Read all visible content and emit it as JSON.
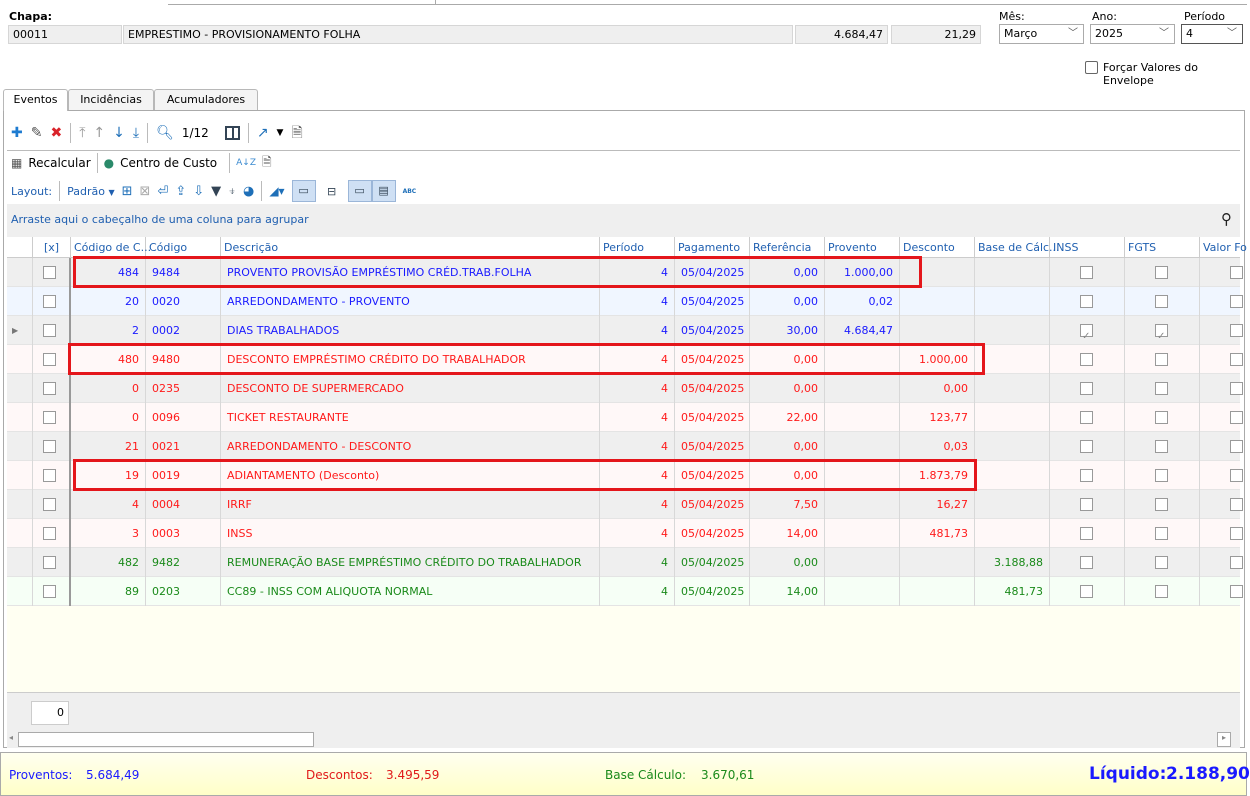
{
  "header": {
    "chapa_label": "Chapa:",
    "chapa": "00011",
    "nome": "EMPRESTIMO - PROVISIONAMENTO FOLHA",
    "valor1": "4.684,47",
    "valor2": "21,29",
    "mes_label": "Mês:",
    "mes": "Março",
    "ano_label": "Ano:",
    "ano": "2025",
    "periodo_label": "Período",
    "periodo": "4",
    "forcar_label": "Forçar Valores do Envelope"
  },
  "tabs": [
    {
      "label": "Eventos"
    },
    {
      "label": "Incidências"
    },
    {
      "label": "Acumuladores"
    }
  ],
  "toolbar": {
    "page": "1/12",
    "recalcular": "Recalcular",
    "centro_custo": "Centro de Custo",
    "layout_label": "Layout:",
    "layout_value": "Padrão",
    "abc": "ABC"
  },
  "group_hint": "Arraste aqui o cabeçalho de uma coluna para agrupar",
  "columns": [
    "[x]",
    "Código de C...",
    "Código",
    "Descrição",
    "Período",
    "Pagamento",
    "Referência",
    "Provento",
    "Desconto",
    "Base de Cálc...",
    "INSS",
    "FGTS",
    "Valor Fo"
  ],
  "colors": {
    "provento": "#1a1aff",
    "desconto": "#ff1a1a",
    "base": "#1a8a1a",
    "highlight": "#e4161b"
  },
  "rows": [
    {
      "cc": "484",
      "cod": "9484",
      "desc": "PROVENTO PROVISÃO EMPRÉSTIMO CRÉD.TRAB.FOLHA",
      "per": "4",
      "pag": "05/04/2025",
      "ref": "0,00",
      "prov": "1.000,00",
      "desc_v": "",
      "base": "",
      "inss": false,
      "fgts": false,
      "type": "provento",
      "highlight": true
    },
    {
      "cc": "20",
      "cod": "0020",
      "desc": "ARREDONDAMENTO - PROVENTO",
      "per": "4",
      "pag": "05/04/2025",
      "ref": "0,00",
      "prov": "0,02",
      "desc_v": "",
      "base": "",
      "inss": false,
      "fgts": false,
      "type": "provento"
    },
    {
      "cc": "2",
      "cod": "0002",
      "desc": "DIAS TRABALHADOS",
      "per": "4",
      "pag": "05/04/2025",
      "ref": "30,00",
      "prov": "4.684,47",
      "desc_v": "",
      "base": "",
      "inss": true,
      "fgts": true,
      "type": "provento",
      "current": true
    },
    {
      "cc": "480",
      "cod": "9480",
      "desc": "DESCONTO EMPRÉSTIMO CRÉDITO DO TRABALHADOR",
      "per": "4",
      "pag": "05/04/2025",
      "ref": "0,00",
      "prov": "",
      "desc_v": "1.000,00",
      "base": "",
      "inss": false,
      "fgts": false,
      "type": "desconto",
      "highlight": true
    },
    {
      "cc": "0",
      "cod": "0235",
      "desc": "DESCONTO DE SUPERMERCADO",
      "per": "4",
      "pag": "05/04/2025",
      "ref": "0,00",
      "prov": "",
      "desc_v": "0,00",
      "base": "",
      "inss": false,
      "fgts": false,
      "type": "desconto"
    },
    {
      "cc": "0",
      "cod": "0096",
      "desc": "TICKET RESTAURANTE",
      "per": "4",
      "pag": "05/04/2025",
      "ref": "22,00",
      "prov": "",
      "desc_v": "123,77",
      "base": "",
      "inss": false,
      "fgts": false,
      "type": "desconto"
    },
    {
      "cc": "21",
      "cod": "0021",
      "desc": "ARREDONDAMENTO - DESCONTO",
      "per": "4",
      "pag": "05/04/2025",
      "ref": "0,00",
      "prov": "",
      "desc_v": "0,03",
      "base": "",
      "inss": false,
      "fgts": false,
      "type": "desconto"
    },
    {
      "cc": "19",
      "cod": "0019",
      "desc": "ADIANTAMENTO (Desconto)",
      "per": "4",
      "pag": "05/04/2025",
      "ref": "0,00",
      "prov": "",
      "desc_v": "1.873,79",
      "base": "",
      "inss": false,
      "fgts": false,
      "type": "desconto",
      "highlight": true
    },
    {
      "cc": "4",
      "cod": "0004",
      "desc": "IRRF",
      "per": "4",
      "pag": "05/04/2025",
      "ref": "7,50",
      "prov": "",
      "desc_v": "16,27",
      "base": "",
      "inss": false,
      "fgts": false,
      "type": "desconto"
    },
    {
      "cc": "3",
      "cod": "0003",
      "desc": "INSS",
      "per": "4",
      "pag": "05/04/2025",
      "ref": "14,00",
      "prov": "",
      "desc_v": "481,73",
      "base": "",
      "inss": false,
      "fgts": false,
      "type": "desconto"
    },
    {
      "cc": "482",
      "cod": "9482",
      "desc": "REMUNERAÇÃO BASE EMPRÉSTIMO CRÉDITO DO TRABALHADOR",
      "per": "4",
      "pag": "05/04/2025",
      "ref": "0,00",
      "prov": "",
      "desc_v": "",
      "base": "3.188,88",
      "inss": false,
      "fgts": false,
      "type": "base"
    },
    {
      "cc": "89",
      "cod": "0203",
      "desc": "CC89 - INSS COM ALIQUOTA NORMAL",
      "per": "4",
      "pag": "05/04/2025",
      "ref": "14,00",
      "prov": "",
      "desc_v": "",
      "base": "481,73",
      "inss": false,
      "fgts": false,
      "type": "base"
    }
  ],
  "footer_count": "0",
  "totals": {
    "proventos_label": "Proventos:",
    "proventos": "5.684,49",
    "descontos_label": "Descontos:",
    "descontos": "3.495,59",
    "base_label": "Base Cálculo:",
    "base": "3.670,61",
    "liquido_label": "Líquido:",
    "liquido": "2.188,90"
  }
}
